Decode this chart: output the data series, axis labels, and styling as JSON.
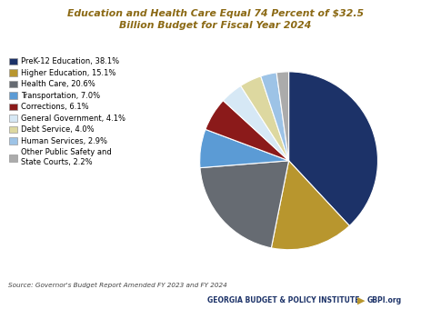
{
  "title": "Education and Health Care Equal 74 Percent of $32.5\nBillion Budget for Fiscal Year 2024",
  "title_color": "#8B6914",
  "labels": [
    "PreK-12 Education, 38.1%",
    "Higher Education, 15.1%",
    "Health Care, 20.6%",
    "Transportation, 7.0%",
    "Corrections, 6.1%",
    "General Government, 4.1%",
    "Debt Service, 4.0%",
    "Human Services, 2.9%",
    "Other Public Safety and\nState Courts, 2.2%"
  ],
  "values": [
    38.1,
    15.1,
    20.6,
    7.0,
    6.1,
    4.1,
    4.0,
    2.9,
    2.2
  ],
  "colors": [
    "#1C3268",
    "#B8962E",
    "#666B72",
    "#5B9BD5",
    "#8B1A1A",
    "#D6E8F5",
    "#DDD8A0",
    "#9DC3E6",
    "#ABABAB"
  ],
  "source_text": "Source: Governor's Budget Report Amended FY 2023 and FY 2024",
  "footer_org": "GEORGIA BUDGET & POLICY INSTITUTE",
  "footer_web": "GBPI.org",
  "footer_color": "#1C3268",
  "startangle": 90,
  "background_color": "#FFFFFF"
}
